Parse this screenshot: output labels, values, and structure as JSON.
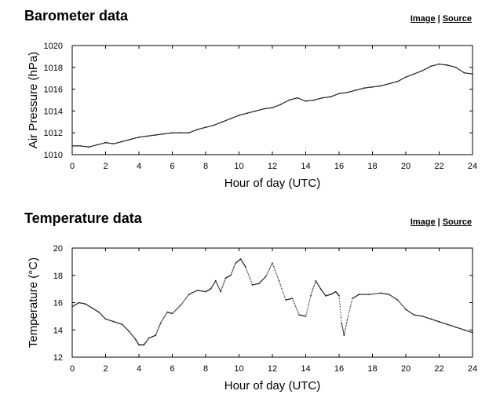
{
  "sections": [
    {
      "heading": "Barometer data",
      "links": {
        "image": "Image",
        "separator": "|",
        "source": "Source"
      }
    },
    {
      "heading": "Temperature data",
      "links": {
        "image": "Image",
        "separator": "|",
        "source": "Source"
      }
    }
  ],
  "chart_data": [
    {
      "type": "scatter",
      "xlabel": "Hour of day (UTC)",
      "ylabel": "Air Pressure (hPa)",
      "xlim": [
        0,
        24
      ],
      "ylim": [
        1010,
        1020
      ],
      "xticks": [
        0,
        2,
        4,
        6,
        8,
        10,
        12,
        14,
        16,
        18,
        20,
        22,
        24
      ],
      "yticks": [
        1010,
        1012,
        1014,
        1016,
        1018,
        1020
      ],
      "grid": false,
      "marker_color": "#222222",
      "series": [
        {
          "x": [
            0,
            0.5,
            1,
            1.5,
            2,
            2.5,
            3,
            3.5,
            4,
            4.5,
            5,
            5.5,
            6,
            6.5,
            7,
            7.5,
            8,
            8.5,
            9,
            9.5,
            10,
            10.5,
            11,
            11.5,
            12,
            12.5,
            13,
            13.5,
            14,
            14.5,
            15,
            15.5,
            16,
            16.5,
            17,
            17.5,
            18,
            18.5,
            19,
            19.5,
            20,
            20.5,
            21,
            21.5,
            22,
            22.5,
            23,
            23.5,
            24
          ],
          "y": [
            1010.8,
            1010.8,
            1010.7,
            1010.9,
            1011.1,
            1011.0,
            1011.2,
            1011.4,
            1011.6,
            1011.7,
            1011.8,
            1011.9,
            1012.0,
            1012.0,
            1012.0,
            1012.3,
            1012.5,
            1012.7,
            1013.0,
            1013.3,
            1013.6,
            1013.8,
            1014.0,
            1014.2,
            1014.3,
            1014.6,
            1015.0,
            1015.2,
            1014.9,
            1015.0,
            1015.2,
            1015.3,
            1015.6,
            1015.7,
            1015.9,
            1016.1,
            1016.2,
            1016.3,
            1016.5,
            1016.7,
            1017.1,
            1017.4,
            1017.7,
            1018.1,
            1018.3,
            1018.2,
            1018.0,
            1017.5,
            1017.4
          ]
        }
      ]
    },
    {
      "type": "scatter",
      "xlabel": "Hour of day (UTC)",
      "ylabel": "Temperature (°C)",
      "xlim": [
        0,
        24
      ],
      "ylim": [
        12,
        20
      ],
      "xticks": [
        0,
        2,
        4,
        6,
        8,
        10,
        12,
        14,
        16,
        18,
        20,
        22,
        24
      ],
      "yticks": [
        12,
        14,
        16,
        18,
        20
      ],
      "grid": false,
      "marker_color": "#222222",
      "series": [
        {
          "x": [
            0,
            0.4,
            0.8,
            1.2,
            1.6,
            2,
            2.5,
            3,
            3.4,
            3.8,
            4,
            4.3,
            4.6,
            5,
            5.3,
            5.7,
            6,
            6.5,
            7,
            7.5,
            8,
            8.3,
            8.6,
            8.9,
            9.2,
            9.5,
            9.8,
            10.1,
            10.4,
            10.8,
            11.2,
            11.6,
            12,
            12.4,
            12.8,
            13.2,
            13.6,
            14,
            14.3,
            14.6,
            14.9,
            15.2,
            15.5,
            15.8,
            16,
            16.15,
            16.3,
            16.5,
            16.8,
            17.2,
            17.8,
            18.5,
            19,
            19.5,
            20,
            20.5,
            21,
            21.5,
            22,
            22.5,
            23,
            23.5,
            24
          ],
          "y": [
            15.7,
            16.0,
            15.9,
            15.6,
            15.3,
            14.8,
            14.6,
            14.4,
            13.9,
            13.3,
            12.9,
            12.9,
            13.4,
            13.6,
            14.5,
            15.3,
            15.2,
            15.8,
            16.6,
            16.9,
            16.8,
            17.0,
            17.6,
            16.8,
            17.8,
            18.0,
            18.9,
            19.2,
            18.6,
            17.3,
            17.4,
            17.9,
            18.9,
            17.6,
            16.2,
            16.3,
            15.1,
            15.0,
            16.5,
            17.6,
            17.0,
            16.5,
            16.6,
            16.8,
            16.5,
            14.5,
            13.6,
            14.8,
            16.3,
            16.6,
            16.6,
            16.7,
            16.6,
            16.2,
            15.5,
            15.1,
            15.0,
            14.8,
            14.6,
            14.4,
            14.2,
            14.0,
            13.8
          ]
        }
      ]
    }
  ]
}
